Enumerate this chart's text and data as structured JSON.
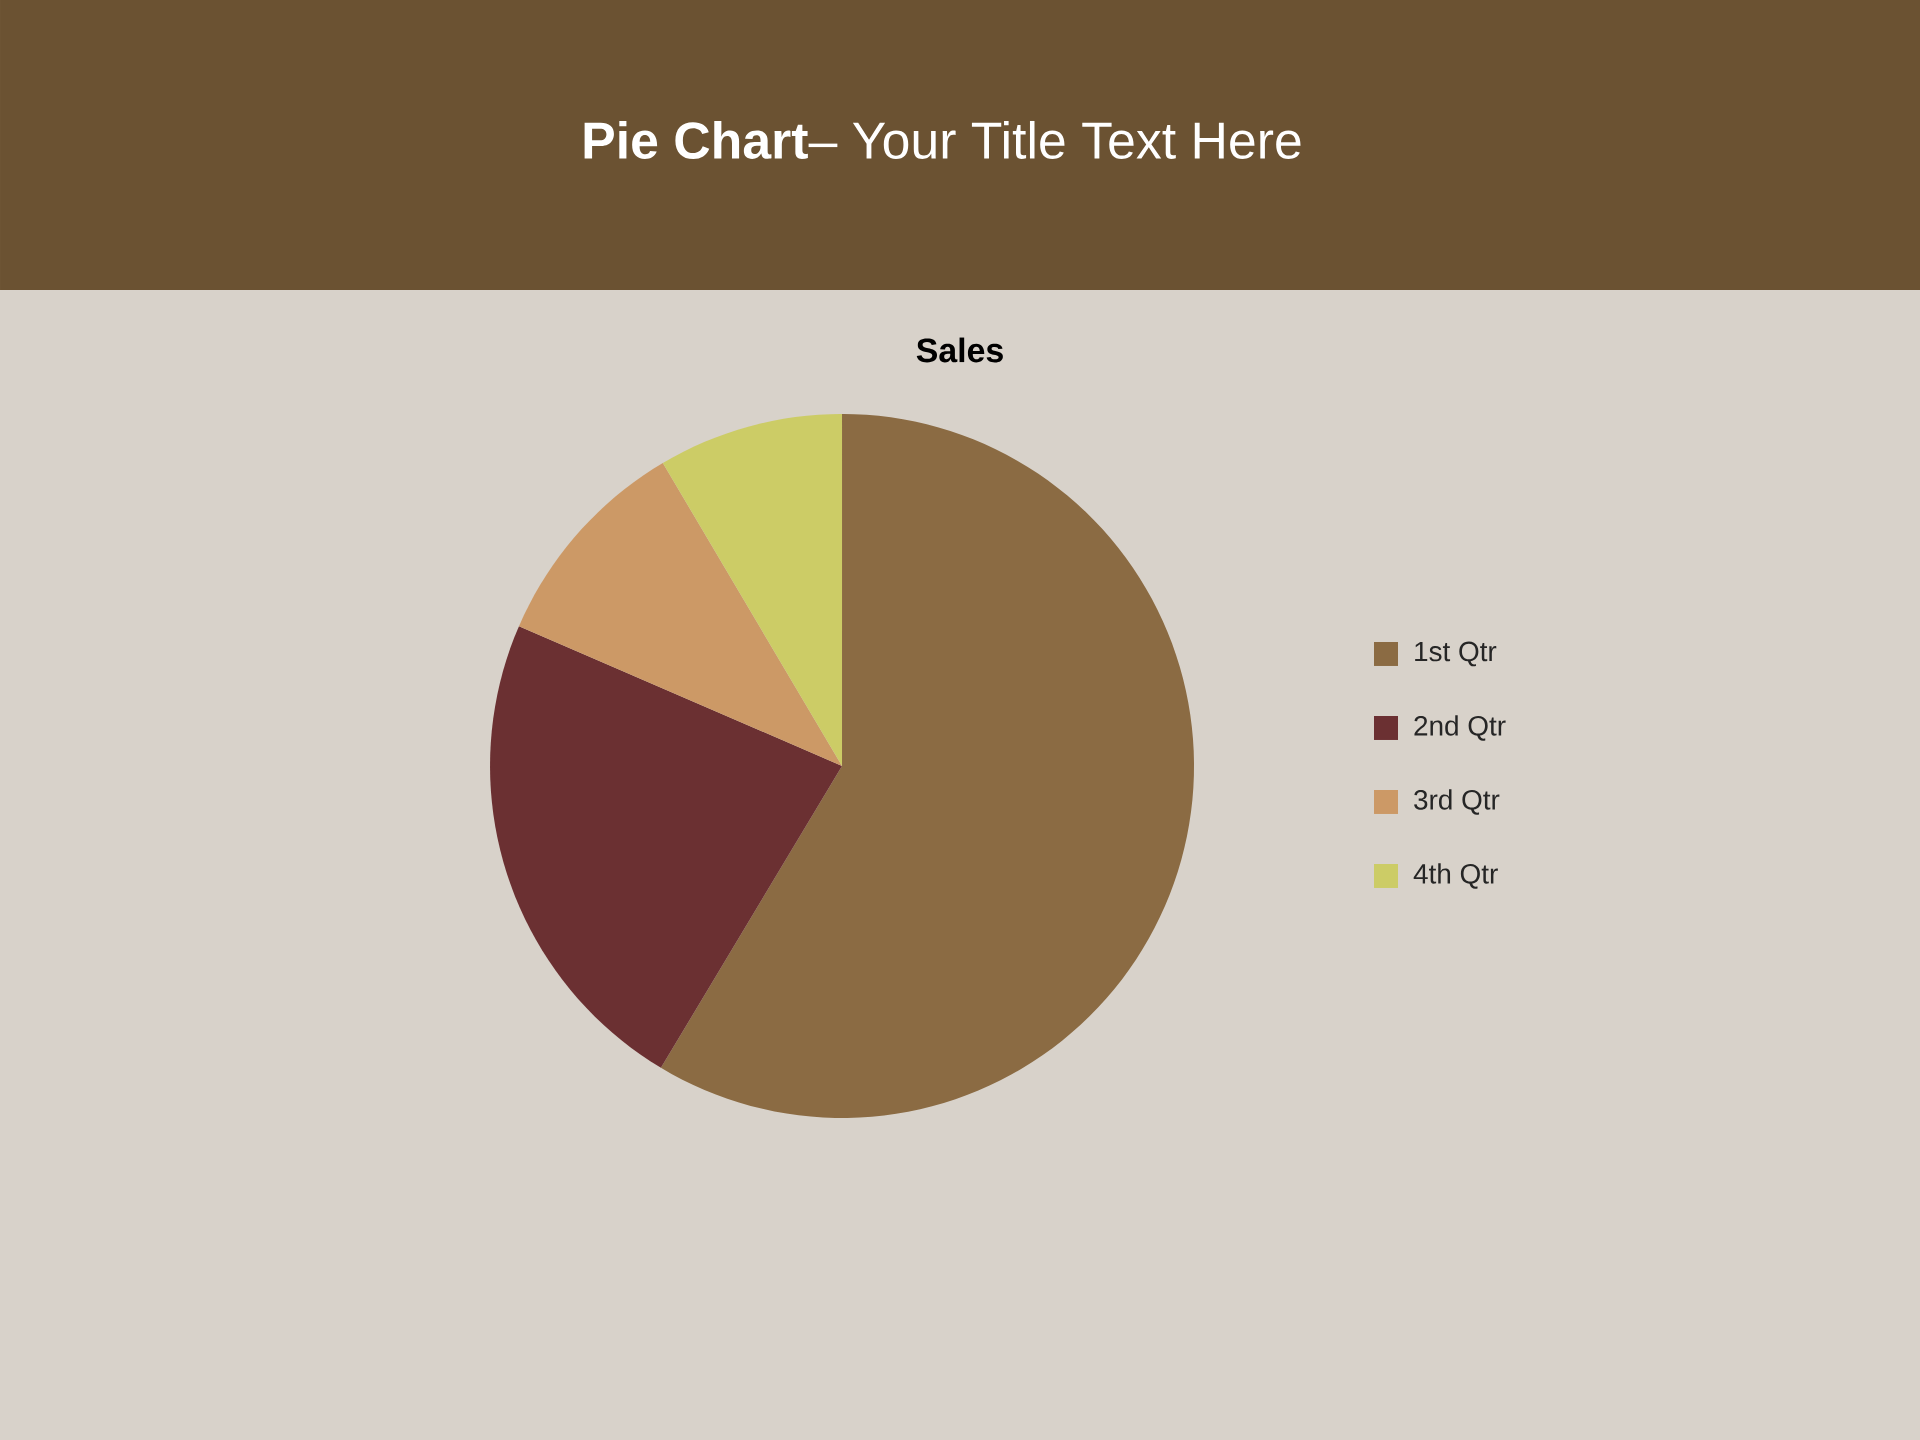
{
  "chart_data": {
    "type": "pie",
    "title": "Sales",
    "annotations": [
      "**Pie Chart**– Your Title Text Here"
    ],
    "categories": [
      "1st Qtr",
      "2nd Qtr",
      "3rd Qtr",
      "4th Qtr"
    ],
    "values": [
      58.6,
      22.9,
      10.0,
      8.5
    ],
    "colors": [
      "#8b6b43",
      "#6b3032",
      "#cc9966",
      "#cccc66"
    ],
    "legend": "right"
  }
}
